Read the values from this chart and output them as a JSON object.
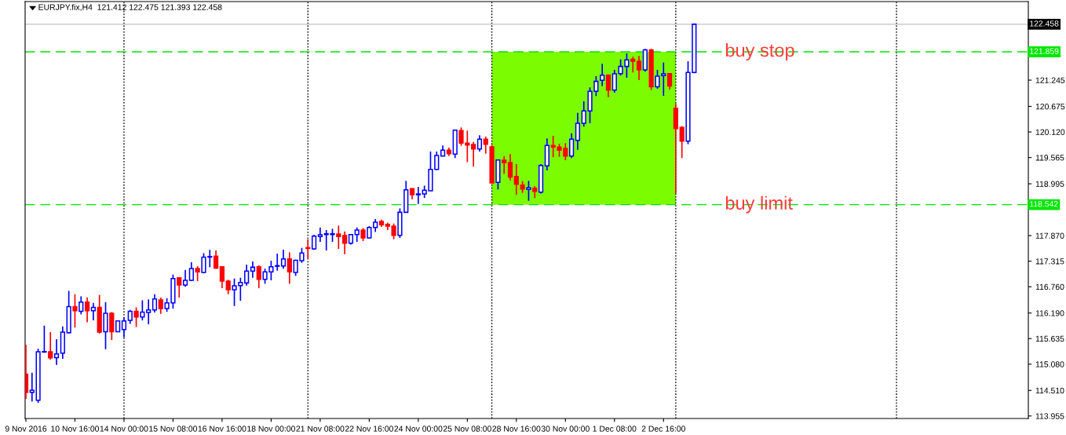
{
  "chart_data": {
    "type": "candlestick",
    "title": "EURJPY.fix,H4  121.412 122.475 121.393 122.458",
    "categories": [
      "9 Nov 2016",
      null,
      null,
      null,
      null,
      null,
      null,
      null,
      "10 Nov 16:00",
      null,
      null,
      null,
      null,
      null,
      null,
      null,
      "14 Nov 00:00",
      null,
      null,
      null,
      null,
      null,
      null,
      null,
      "15 Nov 08:00",
      null,
      null,
      null,
      null,
      null,
      null,
      null,
      "16 Nov 16:00",
      null,
      null,
      null,
      null,
      null,
      null,
      null,
      "18 Nov 00:00",
      null,
      null,
      null,
      null,
      null,
      null,
      null,
      "21 Nov 08:00",
      null,
      null,
      null,
      null,
      null,
      null,
      null,
      "22 Nov 16:00",
      null,
      null,
      null,
      null,
      null,
      null,
      null,
      "24 Nov 00:00",
      null,
      null,
      null,
      null,
      null,
      null,
      null,
      "25 Nov 08:00",
      null,
      null,
      null,
      null,
      null,
      null,
      null,
      "28 Nov 16:00",
      null,
      null,
      null,
      null,
      null,
      null,
      null,
      "30 Nov 00:00",
      null,
      null,
      null,
      null,
      null,
      null,
      null,
      "1 Dec 08:00",
      null,
      null,
      null,
      null,
      null,
      null,
      null,
      "2 Dec 16:00",
      null,
      null,
      null,
      null,
      null,
      null,
      null,
      null,
      null,
      null,
      null,
      null,
      null,
      null,
      null,
      null,
      null,
      null,
      null,
      null,
      null,
      null,
      null,
      null,
      null,
      null,
      null,
      null,
      null,
      null,
      null,
      null,
      null,
      null,
      null,
      null,
      null,
      null,
      null,
      null,
      null,
      null,
      null,
      null,
      null,
      null,
      null,
      null,
      null,
      null,
      null,
      null,
      null,
      null,
      null,
      null,
      null,
      null,
      null
    ],
    "ohlc": [
      [
        114.864,
        115.501,
        114.324,
        114.466
      ],
      [
        114.466,
        114.893,
        114.268,
        114.512
      ],
      [
        114.296,
        115.415,
        114.239,
        115.347
      ],
      [
        115.342,
        115.916,
        115.33,
        115.353
      ],
      [
        115.347,
        115.774,
        115.177,
        115.217
      ],
      [
        115.222,
        115.62,
        115.063,
        115.302
      ],
      [
        115.319,
        115.899,
        115.194,
        115.774
      ],
      [
        115.762,
        116.671,
        115.745,
        116.33
      ],
      [
        116.33,
        116.598,
        115.876,
        116.24
      ],
      [
        116.228,
        116.552,
        116.16,
        116.427
      ],
      [
        116.427,
        116.529,
        115.989,
        116.24
      ],
      [
        116.24,
        116.41,
        116.029,
        116.313
      ],
      [
        116.313,
        116.581,
        115.745,
        115.774
      ],
      [
        115.785,
        116.427,
        115.404,
        116.183
      ],
      [
        116.183,
        116.211,
        115.603,
        115.785
      ],
      [
        115.785,
        116.029,
        115.774,
        116.018
      ],
      [
        115.83,
        116.097,
        115.66,
        116.018
      ],
      [
        116.029,
        116.257,
        115.955,
        116.228
      ],
      [
        116.228,
        116.313,
        115.887,
        116.103
      ],
      [
        116.103,
        116.467,
        116.029,
        116.211
      ],
      [
        116.2,
        116.484,
        115.944,
        116.257
      ],
      [
        116.257,
        116.598,
        116.2,
        116.495
      ],
      [
        116.473,
        116.524,
        116.171,
        116.285
      ],
      [
        116.285,
        116.512,
        116.217,
        116.41
      ],
      [
        116.41,
        117.024,
        116.285,
        116.939
      ],
      [
        116.956,
        116.967,
        116.524,
        116.797
      ],
      [
        116.797,
        117.126,
        116.757,
        116.899
      ],
      [
        116.899,
        117.291,
        116.882,
        117.154
      ],
      [
        117.154,
        117.205,
        116.882,
        117.081
      ],
      [
        117.069,
        117.49,
        117.052,
        117.404
      ],
      [
        117.404,
        117.564,
        117.183,
        117.416
      ],
      [
        117.422,
        117.547,
        117.149,
        117.166
      ],
      [
        117.194,
        117.205,
        116.728,
        116.882
      ],
      [
        116.882,
        116.91,
        116.598,
        116.694
      ],
      [
        116.694,
        116.939,
        116.342,
        116.779
      ],
      [
        116.785,
        116.956,
        116.455,
        116.853
      ],
      [
        116.842,
        117.24,
        116.785,
        117.098
      ],
      [
        117.098,
        117.308,
        116.956,
        117.183
      ],
      [
        117.194,
        117.223,
        116.728,
        116.922
      ],
      [
        116.922,
        117.154,
        116.825,
        117.081
      ],
      [
        117.081,
        117.325,
        116.899,
        117.194
      ],
      [
        117.205,
        117.478,
        117.109,
        117.217
      ],
      [
        117.211,
        117.564,
        117.149,
        117.365
      ],
      [
        117.365,
        117.507,
        116.825,
        117.081
      ],
      [
        117.069,
        117.348,
        116.995,
        117.336
      ],
      [
        117.325,
        117.604,
        117.28,
        117.49
      ],
      [
        117.609,
        117.791,
        117.365,
        117.592
      ],
      [
        117.581,
        117.888,
        117.564,
        117.859
      ],
      [
        117.848,
        118.047,
        117.734,
        117.888
      ],
      [
        117.893,
        117.99,
        117.547,
        117.91
      ],
      [
        117.893,
        118.019,
        117.734,
        117.91
      ],
      [
        117.905,
        118.086,
        117.581,
        117.848
      ],
      [
        117.876,
        117.961,
        117.467,
        117.706
      ],
      [
        117.706,
        117.905,
        117.677,
        117.893
      ],
      [
        117.893,
        118.047,
        117.734,
        117.99
      ],
      [
        117.99,
        118.036,
        117.751,
        117.819
      ],
      [
        117.819,
        118.075,
        117.808,
        118.047
      ],
      [
        118.047,
        118.229,
        117.95,
        118.161
      ],
      [
        118.178,
        118.217,
        118.058,
        118.104
      ],
      [
        118.115,
        118.149,
        117.99,
        118.075
      ],
      [
        118.075,
        118.132,
        117.791,
        117.876
      ],
      [
        117.876,
        118.461,
        117.819,
        118.376
      ],
      [
        118.376,
        119.058,
        118.376,
        118.865
      ],
      [
        118.888,
        118.899,
        118.66,
        118.757
      ],
      [
        118.757,
        118.927,
        118.558,
        118.774
      ],
      [
        118.774,
        118.956,
        118.689,
        118.854
      ],
      [
        118.842,
        119.695,
        118.842,
        119.308
      ],
      [
        119.308,
        119.695,
        119.297,
        119.61
      ],
      [
        119.598,
        119.825,
        119.598,
        119.723
      ],
      [
        119.723,
        119.78,
        119.598,
        119.649
      ],
      [
        119.638,
        120.172,
        119.553,
        120.161
      ],
      [
        120.149,
        120.217,
        119.82,
        119.877
      ],
      [
        119.877,
        120.149,
        119.467,
        119.837
      ],
      [
        119.848,
        119.905,
        119.365,
        119.752
      ],
      [
        119.752,
        120.047,
        119.695,
        119.962
      ],
      [
        119.962,
        120.019,
        119.649,
        119.854
      ],
      [
        119.797,
        119.837,
        119.001,
        119.013
      ],
      [
        119.024,
        119.524,
        118.871,
        119.513
      ],
      [
        119.507,
        119.593,
        119.212,
        119.45
      ],
      [
        119.456,
        119.638,
        119.07,
        119.143
      ],
      [
        119.155,
        119.422,
        118.757,
        118.984
      ],
      [
        118.967,
        119.052,
        118.797,
        118.882
      ],
      [
        118.871,
        119.058,
        118.626,
        118.91
      ],
      [
        118.899,
        118.944,
        118.683,
        118.831
      ],
      [
        118.814,
        119.422,
        118.785,
        119.393
      ],
      [
        119.382,
        119.979,
        119.286,
        119.825
      ],
      [
        119.825,
        120.036,
        119.57,
        119.791
      ],
      [
        119.791,
        119.865,
        119.581,
        119.723
      ],
      [
        119.763,
        119.877,
        119.507,
        119.598
      ],
      [
        119.598,
        120.093,
        119.553,
        119.962
      ],
      [
        119.939,
        120.536,
        119.735,
        120.309
      ],
      [
        120.309,
        120.786,
        120.235,
        120.576
      ],
      [
        120.576,
        121.087,
        120.309,
        121.002
      ],
      [
        121.002,
        121.332,
        120.9,
        121.218
      ],
      [
        121.241,
        121.599,
        121.116,
        121.354
      ],
      [
        121.354,
        121.371,
        120.877,
        121.03
      ],
      [
        121.03,
        121.468,
        120.973,
        121.383
      ],
      [
        121.388,
        121.695,
        121.343,
        121.542
      ],
      [
        121.542,
        121.826,
        121.297,
        121.684
      ],
      [
        121.695,
        121.752,
        121.411,
        121.655
      ],
      [
        121.655,
        121.769,
        121.246,
        121.468
      ],
      [
        121.468,
        121.922,
        121.428,
        121.9
      ],
      [
        121.9,
        121.922,
        121.03,
        121.099
      ],
      [
        121.099,
        121.468,
        121.059,
        121.332
      ],
      [
        121.343,
        121.627,
        120.905,
        121.383
      ],
      [
        121.388,
        121.4,
        121.042,
        121.116
      ],
      [
        120.633,
        120.729,
        118.785,
        120.195
      ],
      [
        120.217,
        120.246,
        119.553,
        119.922
      ],
      [
        119.922,
        121.655,
        119.854,
        121.412
      ],
      [
        121.412,
        122.475,
        121.393,
        122.458
      ],
      null,
      null,
      null,
      null,
      null,
      null,
      null,
      null,
      null,
      null,
      null,
      null,
      null,
      null,
      null,
      null,
      null,
      null,
      null,
      null,
      null,
      null,
      null,
      null,
      null,
      null,
      null,
      null,
      null,
      null,
      null,
      null,
      null,
      null,
      null,
      null,
      null,
      null,
      null,
      null,
      null,
      null,
      null,
      null,
      null,
      null,
      null,
      null,
      null,
      null,
      null,
      null,
      null,
      null
    ],
    "colors": [
      "#ff0000",
      "#0000ff",
      "#0000ff",
      "#0000ff",
      "#ff0000",
      "#0000ff",
      "#0000ff",
      "#0000ff",
      "#ff0000",
      "#0000ff",
      "#ff0000",
      "#0000ff",
      "#ff0000",
      "#0000ff",
      "#ff0000",
      "#0000ff",
      "#0000ff",
      "#0000ff",
      "#ff0000",
      "#0000ff",
      "#0000ff",
      "#0000ff",
      "#ff0000",
      "#0000ff",
      "#0000ff",
      "#ff0000",
      "#0000ff",
      "#0000ff",
      "#ff0000",
      "#0000ff",
      "#0000ff",
      "#ff0000",
      "#ff0000",
      "#ff0000",
      "#0000ff",
      "#0000ff",
      "#0000ff",
      "#0000ff",
      "#ff0000",
      "#0000ff",
      "#0000ff",
      "#0000ff",
      "#0000ff",
      "#ff0000",
      "#0000ff",
      "#0000ff",
      "#ff0000",
      "#0000ff",
      "#0000ff",
      "#0000ff",
      "#0000ff",
      "#ff0000",
      "#ff0000",
      "#0000ff",
      "#0000ff",
      "#ff0000",
      "#0000ff",
      "#0000ff",
      "#ff0000",
      "#ff0000",
      "#ff0000",
      "#0000ff",
      "#0000ff",
      "#ff0000",
      "#0000ff",
      "#0000ff",
      "#0000ff",
      "#0000ff",
      "#0000ff",
      "#ff0000",
      "#0000ff",
      "#ff0000",
      "#ff0000",
      "#ff0000",
      "#0000ff",
      "#ff0000",
      "#ff0000",
      "#0000ff",
      "#ff0000",
      "#ff0000",
      "#ff0000",
      "#ff0000",
      "#0000ff",
      "#ff0000",
      "#0000ff",
      "#0000ff",
      "#ff0000",
      "#ff0000",
      "#ff0000",
      "#0000ff",
      "#0000ff",
      "#0000ff",
      "#0000ff",
      "#0000ff",
      "#0000ff",
      "#ff0000",
      "#0000ff",
      "#0000ff",
      "#0000ff",
      "#ff0000",
      "#ff0000",
      "#0000ff",
      "#ff0000",
      "#0000ff",
      "#0000ff",
      "#ff0000",
      "#ff0000",
      "#ff0000",
      "#0000ff",
      "#0000ff",
      null,
      null,
      null,
      null,
      null,
      null,
      null,
      null,
      null,
      null,
      null,
      null,
      null,
      null,
      null,
      null,
      null,
      null,
      null,
      null,
      null,
      null,
      null,
      null,
      null,
      null,
      null,
      null,
      null,
      null,
      null,
      null,
      null,
      null,
      null,
      null,
      null,
      null,
      null,
      null,
      null,
      null,
      null,
      null,
      null,
      null,
      null,
      null,
      null,
      null,
      null,
      null,
      null,
      null
    ],
    "ylim": [
      113.9,
      122.95
    ],
    "yticks": [
      113.955,
      {
        "value": 114.51,
        "label": "114.510"
      },
      {
        "value": 115.08,
        "label": "115.080"
      },
      115.635,
      {
        "value": 116.19,
        "label": "116.190"
      },
      {
        "value": 116.76,
        "label": "116.760"
      },
      117.315,
      {
        "value": 117.87,
        "label": "117.870"
      },
      118.995,
      119.565,
      {
        "value": 120.12,
        "label": "120.120"
      },
      120.675,
      121.245
    ],
    "ref_lines": [
      {
        "axis": "y",
        "value": 122.458,
        "label": "122.458",
        "color": "#c0c0c0",
        "line_style": "solid"
      },
      {
        "axis": "y",
        "value": 121.859,
        "label": "121.859",
        "color": "#00e600",
        "line_style": "dashed"
      },
      {
        "axis": "y",
        "value": 118.542,
        "label": "118.542",
        "color": "#00e600",
        "line_style": "dashed"
      }
    ],
    "bands": [
      {
        "axis": "y",
        "from": 118.542,
        "to": 121.859,
        "color": "#7cfc00"
      }
    ],
    "annotations": [
      {
        "text": "buy stop",
        "y": 121.859
      },
      {
        "text": "buy limit",
        "y": 118.542
      }
    ],
    "grid": false,
    "legend": false
  }
}
